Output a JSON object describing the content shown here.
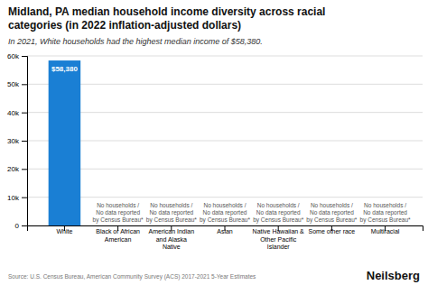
{
  "chart_data": {
    "type": "bar",
    "title": "Midland, PA median household income diversity across racial\ncategories (in 2022 inflation-adjusted dollars)",
    "subtitle": "In 2021, White households had the highest median income of $58,380.",
    "source": "Source: U.S. Census Bureau, American Community Survey (ACS) 2017-2021 5-Year Estimates",
    "brand": "Neilsberg",
    "categories": [
      "White",
      "Black or African\nAmerican",
      "American Indian\nand Alaska\nNative",
      "Asian",
      "Native Hawaiian &\nOther Pacific\nIslander",
      "Some other race",
      "Multiracial"
    ],
    "values": [
      58380,
      0,
      0,
      0,
      0,
      0,
      0
    ],
    "color": "#1a7fd4",
    "ylim": [
      0,
      60000
    ],
    "yticks": [
      0,
      {
        "value": 10000,
        "label": "10k"
      },
      {
        "value": 20000,
        "label": "20k"
      },
      {
        "value": 30000,
        "label": "30k"
      },
      {
        "value": 40000,
        "label": "40k"
      },
      {
        "value": 50000,
        "label": "50k"
      },
      {
        "value": 60000,
        "label": "60k"
      }
    ],
    "grid": true,
    "annotations": [
      {
        "category": "White",
        "text": "$58,380"
      },
      {
        "category": "Black or African\nAmerican",
        "text": "No households /\nNo data reported\nby Census Bureau*"
      },
      {
        "category": "American Indian\nand Alaska\nNative",
        "text": "No households /\nNo data reported\nby Census Bureau*"
      },
      {
        "category": "Asian",
        "text": "No households /\nNo data reported\nby Census Bureau*"
      },
      {
        "category": "Native Hawaiian &\nOther Pacific\nIslander",
        "text": "No households /\nNo data reported\nby Census Bureau*"
      },
      {
        "category": "Some other race",
        "text": "No households /\nNo data reported\nby Census Bureau*"
      },
      {
        "category": "Multiracial",
        "text": "No households /\nNo data reported\nby Census Bureau*"
      }
    ]
  }
}
